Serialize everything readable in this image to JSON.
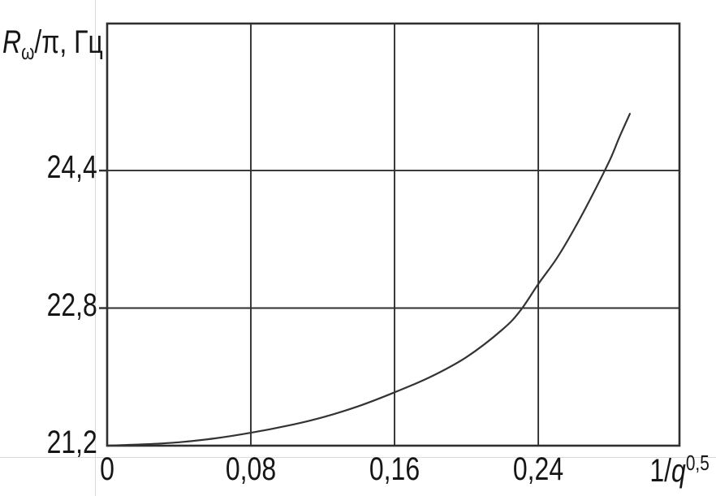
{
  "figure": {
    "background": "#ffffff",
    "line_color": "#2f2f2f",
    "curve_color": "#333333",
    "text_color": "#161616",
    "faint_rule_color": "#dadada"
  },
  "chart_data": {
    "type": "line",
    "title": "",
    "ylabel": "Rω/π, Гц",
    "ylabel_parts": {
      "symbol": "R",
      "subscript": "ω",
      "rest": "/π, Гц"
    },
    "xlabel": "1/q^0,5",
    "xlabel_parts": {
      "prefix": "1/",
      "symbol": "q",
      "superscript": "0,5"
    },
    "xlim": [
      0,
      0.3186
    ],
    "ylim": [
      21.2,
      26.11
    ],
    "grid": true,
    "legend": false,
    "x_ticks": [
      {
        "value": 0,
        "label": "0"
      },
      {
        "value": 0.08,
        "label": "0,08"
      },
      {
        "value": 0.16,
        "label": "0,16"
      },
      {
        "value": 0.24,
        "label": "0,24"
      }
    ],
    "y_ticks": [
      {
        "value": 21.2,
        "label": "21,2"
      },
      {
        "value": 22.8,
        "label": "22,8"
      },
      {
        "value": 24.4,
        "label": "24,4"
      }
    ],
    "x_gridlines": [
      0.08,
      0.16,
      0.24
    ],
    "y_gridlines": [
      22.8,
      24.4
    ],
    "series": [
      {
        "name": "R_omega/pi vs 1/q^0.5",
        "points": [
          [
            0.0,
            21.2
          ],
          [
            0.02,
            21.215
          ],
          [
            0.04,
            21.24
          ],
          [
            0.06,
            21.285
          ],
          [
            0.08,
            21.35
          ],
          [
            0.1,
            21.43
          ],
          [
            0.12,
            21.53
          ],
          [
            0.14,
            21.66
          ],
          [
            0.16,
            21.82
          ],
          [
            0.18,
            22.0
          ],
          [
            0.2,
            22.23
          ],
          [
            0.22,
            22.55
          ],
          [
            0.23,
            22.77
          ],
          [
            0.24,
            23.08
          ],
          [
            0.25,
            23.37
          ],
          [
            0.26,
            23.72
          ],
          [
            0.27,
            24.11
          ],
          [
            0.28,
            24.53
          ],
          [
            0.285,
            24.78
          ],
          [
            0.291,
            25.06
          ]
        ]
      }
    ]
  }
}
